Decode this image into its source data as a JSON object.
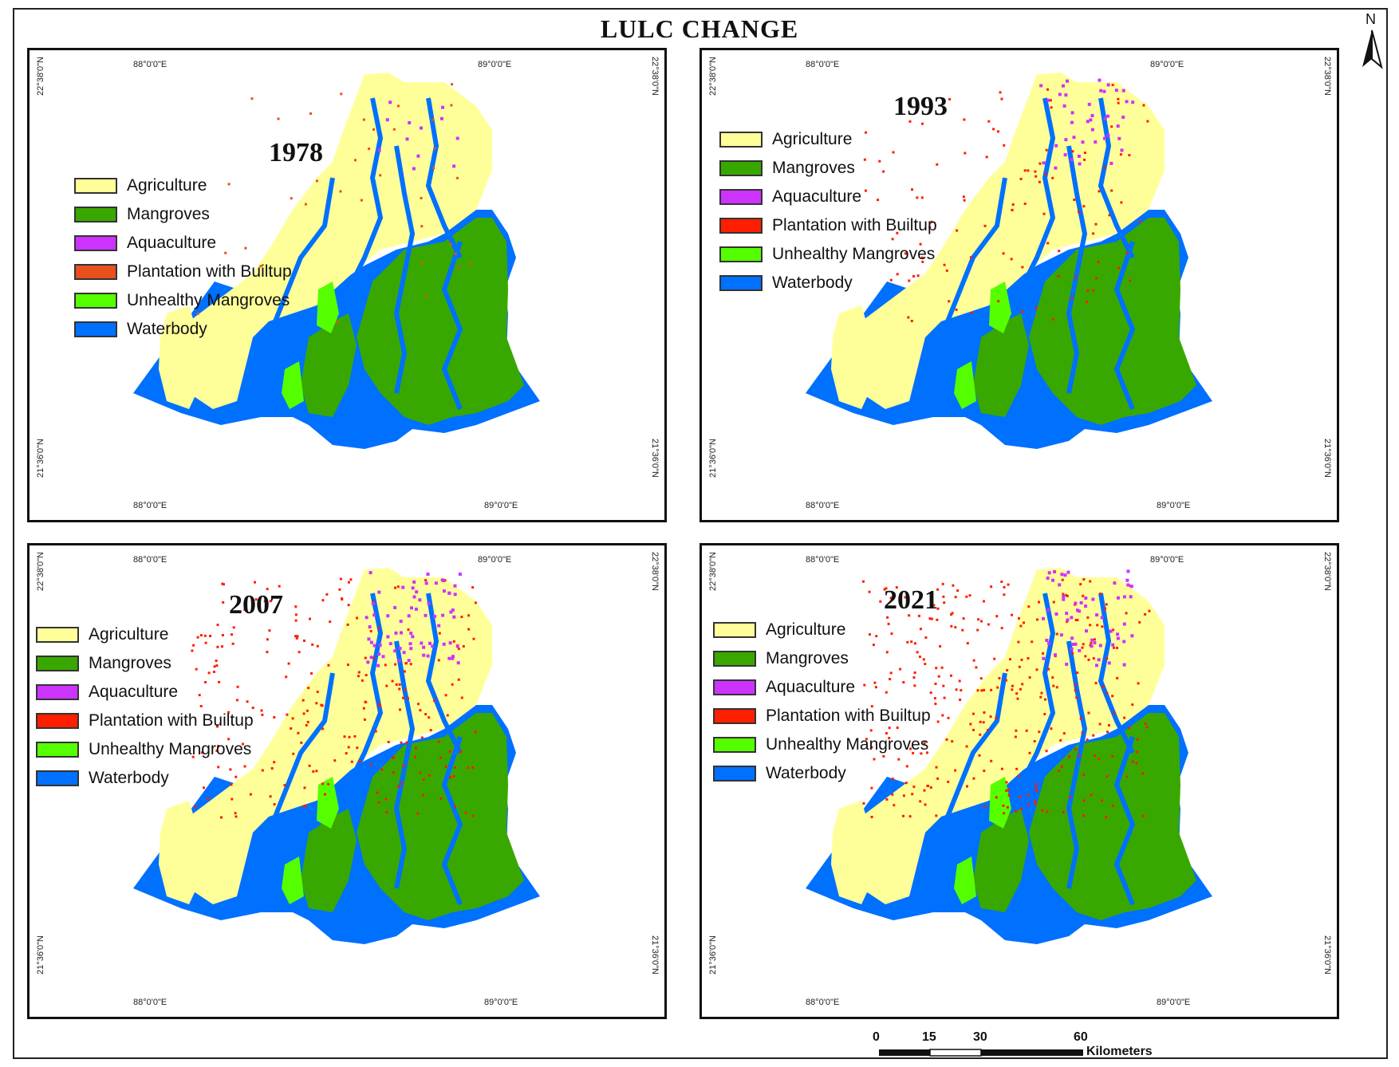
{
  "title": "LULC CHANGE",
  "north_arrow": {
    "label": "N"
  },
  "legend_classes": [
    {
      "label": "Agriculture",
      "color": "#ffff99"
    },
    {
      "label": "Mangroves",
      "color": "#38a800"
    },
    {
      "label": "Aquaculture",
      "color": "#cc33ff"
    },
    {
      "label": "Plantation with Builtup",
      "color": "#ff2600"
    },
    {
      "label": "Unhealthy Mangroves",
      "color": "#55ff00"
    },
    {
      "label": "Waterbody",
      "color": "#0070ff"
    }
  ],
  "graticule": {
    "lon_west": "88°0'0\"E",
    "lon_east": "89°0'0\"E",
    "lat_north": "22°38'0\"N",
    "lat_south": "21°36'0\"N"
  },
  "panels": [
    {
      "year": "1978",
      "plantation_color": "#e8501e",
      "red_density": 0.04,
      "aqua_density": 0.02
    },
    {
      "year": "1993",
      "plantation_color": "#ff1e00",
      "red_density": 0.12,
      "aqua_density": 0.07
    },
    {
      "year": "2007",
      "plantation_color": "#ff1e00",
      "red_density": 0.26,
      "aqua_density": 0.12
    },
    {
      "year": "2021",
      "plantation_color": "#ff1e00",
      "red_density": 0.35,
      "aqua_density": 0.1
    }
  ],
  "scale_bar": {
    "ticks": [
      "0",
      "15",
      "30",
      "60"
    ],
    "unit": "Kilometers"
  }
}
